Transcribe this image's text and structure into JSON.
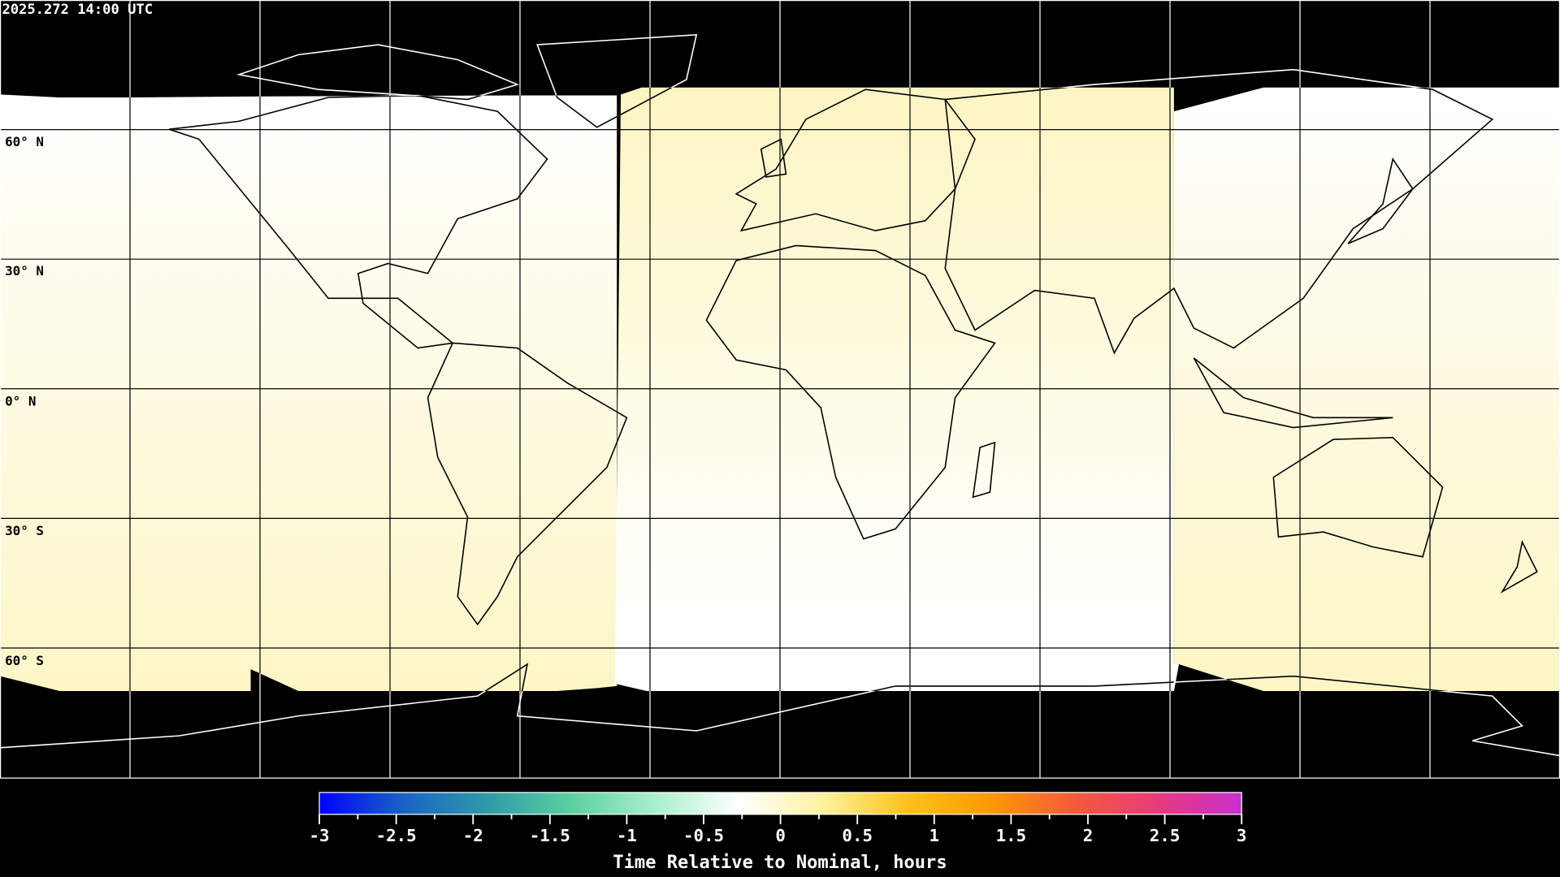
{
  "timestamp": "2025.272 14:00 UTC",
  "map": {
    "projection": "equirectangular",
    "lon_range": [
      -180,
      180
    ],
    "lat_range": [
      -90,
      90
    ],
    "grid_spacing_deg": 30,
    "lat_labels": [
      "60° N",
      "30° N",
      "0° N",
      "30° S",
      "60° S"
    ],
    "no_data_color": "#000000",
    "coastline_color_on_data": "#000000",
    "coastline_color_on_nodata": "#ffffff"
  },
  "colorbar": {
    "label": "Time Relative to Nominal, hours",
    "min": -3,
    "max": 3,
    "ticks": [
      "-3",
      "-2.5",
      "-2",
      "-1.5",
      "-1",
      "-0.5",
      "0",
      "0.5",
      "1",
      "1.5",
      "2",
      "2.5",
      "3"
    ],
    "colors": [
      "#0000ff",
      "#1a63c6",
      "#2f9aa8",
      "#5ccfa0",
      "#a8f0cc",
      "#ffffff",
      "#fef2a0",
      "#fcc21a",
      "#fb9a00",
      "#f55a3c",
      "#e83a7a",
      "#c830d0"
    ]
  }
}
